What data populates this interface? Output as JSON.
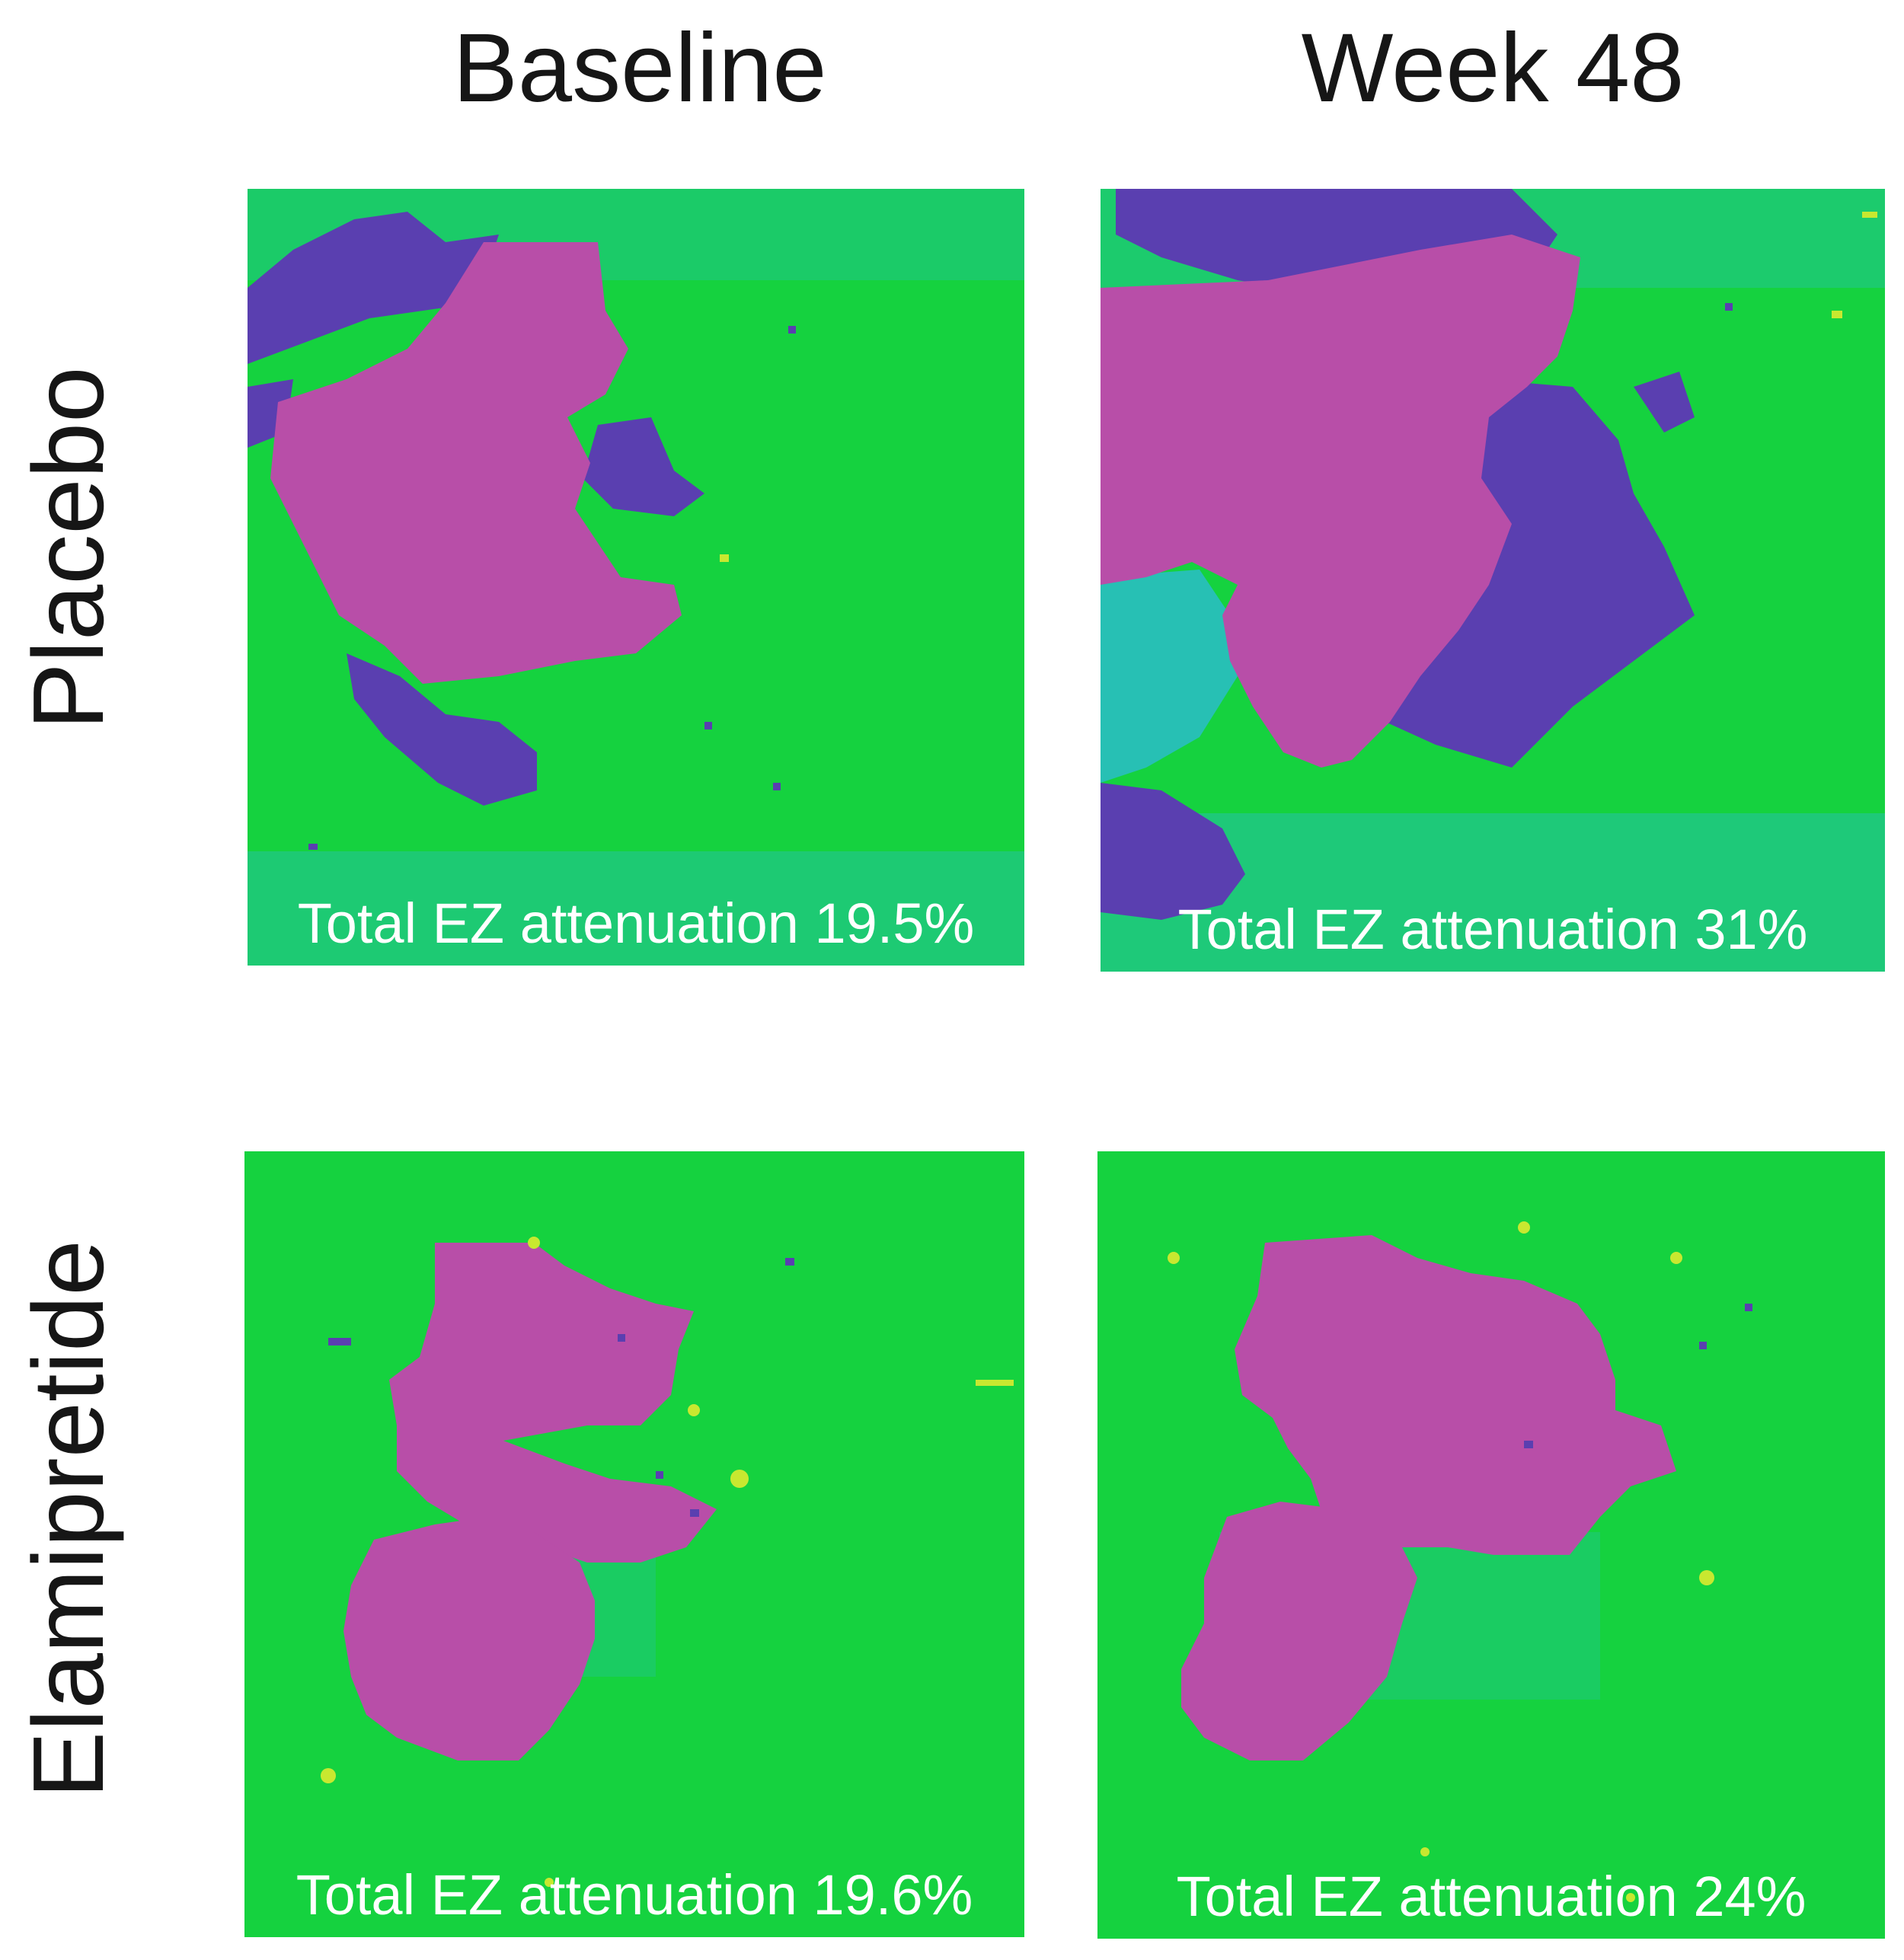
{
  "columns": {
    "baseline": "Baseline",
    "week48": "Week 48"
  },
  "rows": {
    "placebo": "Placebo",
    "elamipretide": "Elamipretide"
  },
  "panels": {
    "placebo_baseline": {
      "caption": "Total EZ attenuation 19.5%"
    },
    "placebo_week48": {
      "caption": "Total EZ attenuation 31%"
    },
    "elamipretide_baseline": {
      "caption": "Total EZ attenuation 19.6%"
    },
    "elamipretide_week48": {
      "caption": "Total EZ attenuation 24%"
    }
  },
  "colors": {
    "intact": "#15d23f",
    "transition": "#27c0b4",
    "partial": "#5a3fb0",
    "attenuated": "#b84ea8",
    "speckle": "#c8e830"
  }
}
